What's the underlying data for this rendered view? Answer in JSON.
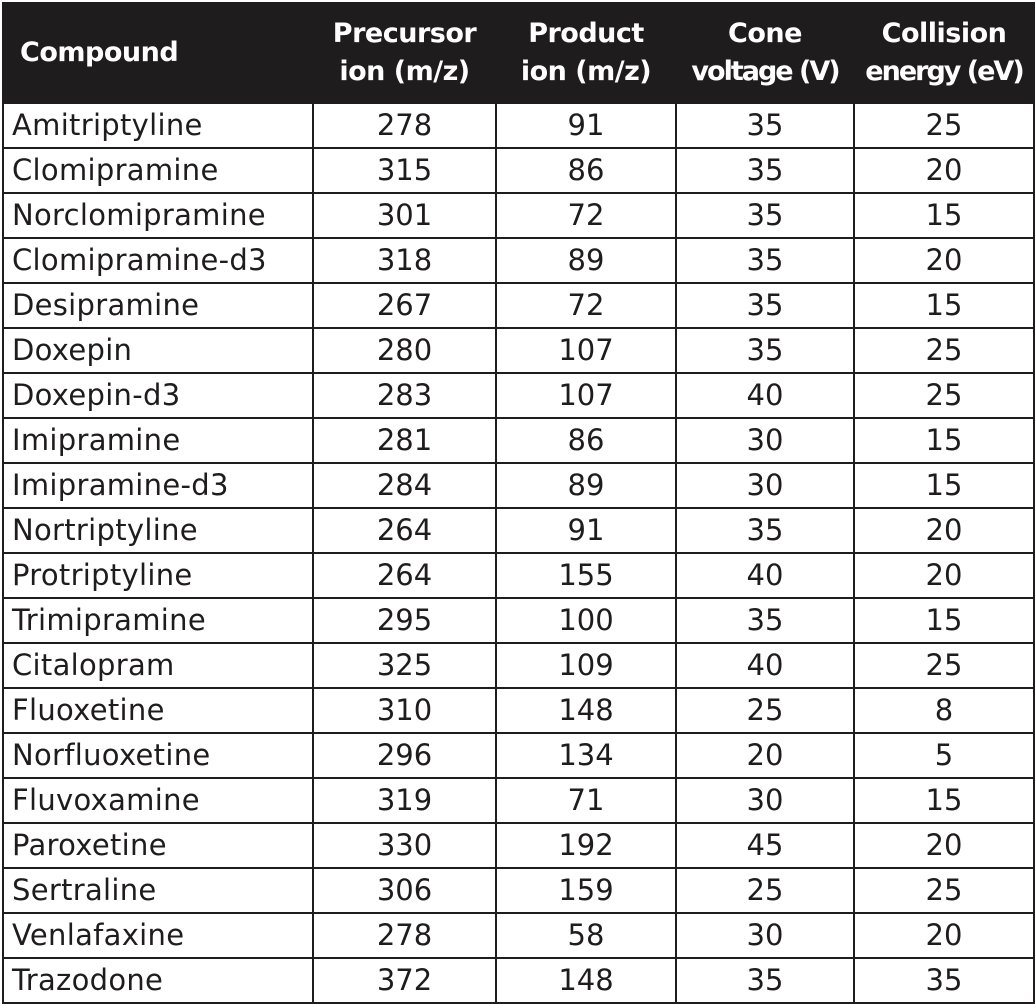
{
  "headers": {
    "compound": "Compound",
    "precursor": [
      "Precursor",
      "ion (m/z)"
    ],
    "product": [
      "Product",
      "ion (m/z)"
    ],
    "cone": [
      "Cone",
      "voltage (V)"
    ],
    "collision": [
      "Collision",
      "energy (eV)"
    ]
  },
  "rows": [
    {
      "compound": "Amitriptyline",
      "precursor": "278",
      "product": "91",
      "cone": "35",
      "collision": "25"
    },
    {
      "compound": "Clomipramine",
      "precursor": "315",
      "product": "86",
      "cone": "35",
      "collision": "20"
    },
    {
      "compound": "Norclomipramine",
      "precursor": "301",
      "product": "72",
      "cone": "35",
      "collision": "15"
    },
    {
      "compound": "Clomipramine-d3",
      "precursor": "318",
      "product": "89",
      "cone": "35",
      "collision": "20"
    },
    {
      "compound": "Desipramine",
      "precursor": "267",
      "product": "72",
      "cone": "35",
      "collision": "15"
    },
    {
      "compound": "Doxepin",
      "precursor": "280",
      "product": "107",
      "cone": "35",
      "collision": "25"
    },
    {
      "compound": "Doxepin-d3",
      "precursor": "283",
      "product": "107",
      "cone": "40",
      "collision": "25"
    },
    {
      "compound": "Imipramine",
      "precursor": "281",
      "product": "86",
      "cone": "30",
      "collision": "15"
    },
    {
      "compound": "Imipramine-d3",
      "precursor": "284",
      "product": "89",
      "cone": "30",
      "collision": "15"
    },
    {
      "compound": "Nortriptyline",
      "precursor": "264",
      "product": "91",
      "cone": "35",
      "collision": "20"
    },
    {
      "compound": "Protriptyline",
      "precursor": "264",
      "product": "155",
      "cone": "40",
      "collision": "20"
    },
    {
      "compound": "Trimipramine",
      "precursor": "295",
      "product": "100",
      "cone": "35",
      "collision": "15"
    },
    {
      "compound": "Citalopram",
      "precursor": "325",
      "product": "109",
      "cone": "40",
      "collision": "25"
    },
    {
      "compound": "Fluoxetine",
      "precursor": "310",
      "product": "148",
      "cone": "25",
      "collision": "8"
    },
    {
      "compound": "Norfluoxetine",
      "precursor": "296",
      "product": "134",
      "cone": "20",
      "collision": "5"
    },
    {
      "compound": "Fluvoxamine",
      "precursor": "319",
      "product": "71",
      "cone": "30",
      "collision": "15"
    },
    {
      "compound": "Paroxetine",
      "precursor": "330",
      "product": "192",
      "cone": "45",
      "collision": "20"
    },
    {
      "compound": "Sertraline",
      "precursor": "306",
      "product": "159",
      "cone": "25",
      "collision": "25"
    },
    {
      "compound": "Venlafaxine",
      "precursor": "278",
      "product": "58",
      "cone": "30",
      "collision": "20"
    },
    {
      "compound": "Trazodone",
      "precursor": "372",
      "product": "148",
      "cone": "35",
      "collision": "35"
    }
  ]
}
